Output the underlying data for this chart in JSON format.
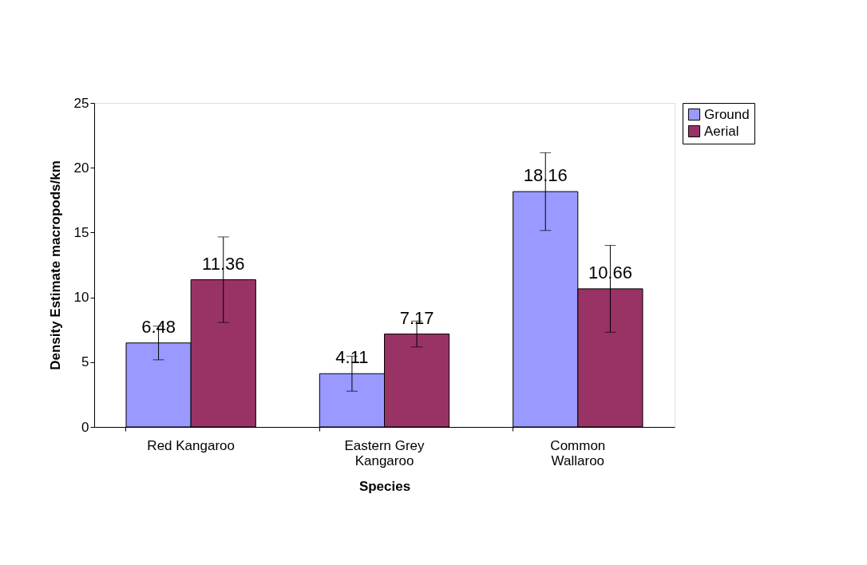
{
  "chart_data": {
    "type": "bar",
    "xlabel": "Species",
    "ylabel": "Density Estimate macropods/km",
    "categories": [
      "Red Kangaroo",
      "Eastern Grey\nKangaroo",
      "Common\nWallaroo"
    ],
    "series": [
      {
        "name": "Ground",
        "color": "#9999ff",
        "values": [
          6.48,
          4.11,
          18.16
        ],
        "errors": [
          1.3,
          1.35,
          3.0
        ]
      },
      {
        "name": "Aerial",
        "color": "#993366",
        "values": [
          11.36,
          7.17,
          10.66
        ],
        "errors": [
          3.3,
          1.0,
          3.35
        ]
      }
    ],
    "ylim": [
      0,
      25
    ],
    "yticks": [
      0,
      5,
      10,
      15,
      20,
      25
    ],
    "grid": false,
    "legend": "right",
    "data_labels": true
  }
}
